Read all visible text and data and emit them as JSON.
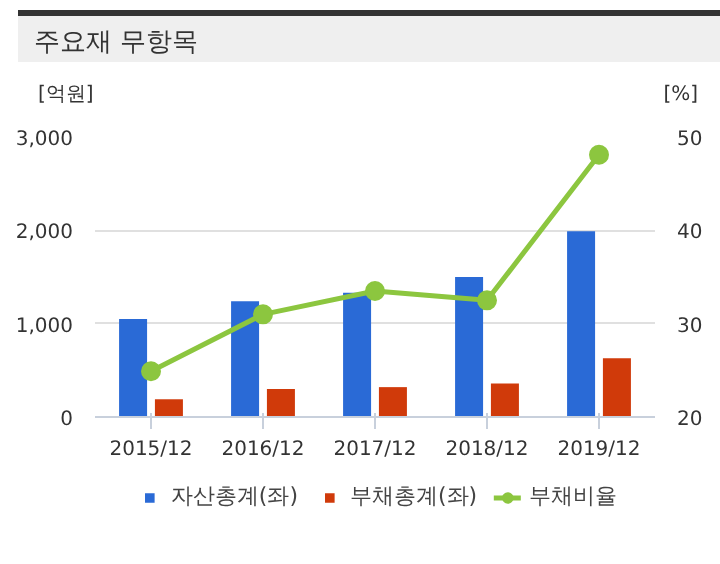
{
  "chart_data": {
    "type": "bar",
    "title": "주요재 무항목",
    "ylabel": "[억원]",
    "y2label": "[%]",
    "categories": [
      "2015/12",
      "2016/12",
      "2017/12",
      "2018/12",
      "2019/12"
    ],
    "series": [
      {
        "name": "자산총계(좌)",
        "color": "#2a6ad6",
        "values": [
          1050,
          1240,
          1330,
          1500,
          1990
        ]
      },
      {
        "name": "부채총계(좌)",
        "color": "#d03a0a",
        "values": [
          190,
          300,
          320,
          360,
          630
        ]
      },
      {
        "name": "부채비율",
        "type": "line",
        "axis": "y2",
        "color": "#8cc63f",
        "values": [
          24.9,
          31.0,
          33.5,
          32.5,
          48.1
        ]
      }
    ],
    "ylim": [
      0,
      3000
    ],
    "yticks": [
      0,
      {
        "value": 1000,
        "label": "1,000"
      },
      {
        "value": 2000,
        "label": "2,000"
      },
      {
        "value": 3000,
        "label": "3,000"
      }
    ],
    "y2lim": [
      20,
      50
    ],
    "y2ticks": [
      20,
      30,
      40,
      50
    ],
    "grid": "y",
    "legend": "bottom",
    "marker": "circle"
  }
}
